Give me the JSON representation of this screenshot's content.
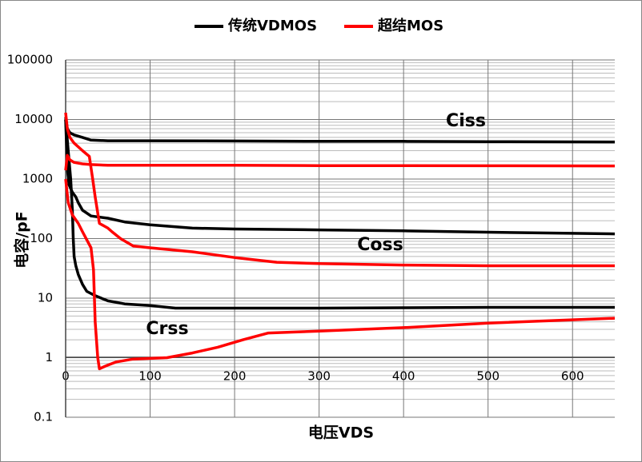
{
  "chart_data": {
    "type": "line",
    "log_scale_y": true,
    "grid": true,
    "minor_grid": true,
    "x_label": "电压VDS",
    "y_label": "电容/pF",
    "xlim": [
      0,
      650
    ],
    "xticks": [
      0,
      100,
      200,
      300,
      400,
      500,
      600
    ],
    "ylim": [
      0.1,
      100000
    ],
    "yticks": [
      0.1,
      1,
      10,
      100,
      1000,
      10000,
      100000
    ],
    "annotations": [
      "Ciss",
      "Coss",
      "Crss"
    ],
    "series": [
      {
        "name": "传统VDMOS",
        "color": "#000000",
        "x": [
          0,
          2,
          5,
          10,
          20,
          30,
          50,
          100,
          200,
          300,
          400,
          500,
          650
        ],
        "values": [
          11000,
          7000,
          6000,
          5500,
          5000,
          4500,
          4400,
          4400,
          4350,
          4300,
          4300,
          4250,
          4200
        ]
      },
      {
        "color": "#000000",
        "x": [
          0,
          2,
          4,
          8,
          12,
          15,
          20,
          30,
          50,
          70,
          100,
          150,
          200,
          300,
          400,
          500,
          650
        ],
        "values": [
          10000,
          1500,
          800,
          600,
          500,
          400,
          300,
          240,
          220,
          190,
          170,
          150,
          145,
          140,
          135,
          128,
          120
        ]
      },
      {
        "color": "#000000",
        "x": [
          0,
          3,
          6,
          8,
          9,
          10,
          12,
          15,
          20,
          25,
          35,
          50,
          70,
          100,
          130,
          200,
          300,
          400,
          500,
          650
        ],
        "values": [
          10000,
          3000,
          1000,
          300,
          100,
          50,
          35,
          25,
          17,
          13,
          11,
          9,
          8,
          7.5,
          6.8,
          6.8,
          6.8,
          6.9,
          7,
          7
        ]
      },
      {
        "name": "超结MOS",
        "color": "#ff0000",
        "x": [
          0,
          2,
          5,
          10,
          20,
          30,
          50,
          100,
          200,
          300,
          400,
          500,
          650
        ],
        "values": [
          1400,
          2500,
          2100,
          1900,
          1800,
          1750,
          1700,
          1700,
          1700,
          1680,
          1680,
          1670,
          1660
        ]
      },
      {
        "color": "#ff0000",
        "x": [
          0,
          2,
          5,
          10,
          20,
          28,
          32,
          35,
          40,
          50,
          55,
          65,
          80,
          100,
          150,
          200,
          250,
          300,
          400,
          500,
          650
        ],
        "values": [
          13000,
          7000,
          5000,
          4000,
          3000,
          2400,
          1000,
          500,
          180,
          150,
          130,
          100,
          75,
          70,
          60,
          48,
          40,
          38,
          36,
          35,
          35
        ]
      },
      {
        "color": "#ff0000",
        "x": [
          0,
          3,
          8,
          15,
          20,
          30,
          33,
          35,
          38,
          40,
          45,
          50,
          60,
          80,
          120,
          150,
          180,
          210,
          240,
          300,
          400,
          500,
          650
        ],
        "values": [
          1000,
          400,
          250,
          180,
          130,
          70,
          30,
          4,
          1,
          0.65,
          0.7,
          0.75,
          0.85,
          0.95,
          1,
          1.2,
          1.5,
          2,
          2.6,
          2.8,
          3.2,
          3.8,
          4.6
        ]
      }
    ]
  }
}
